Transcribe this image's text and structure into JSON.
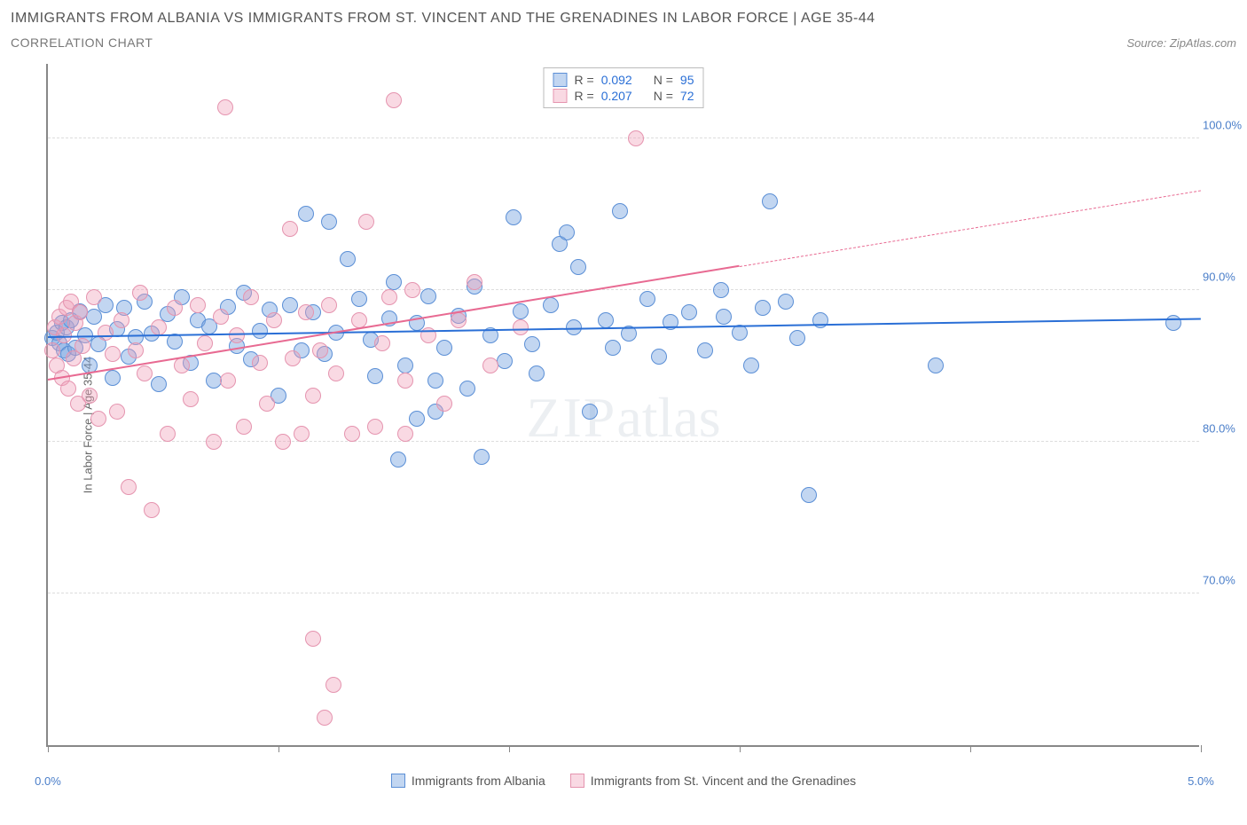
{
  "title": "IMMIGRANTS FROM ALBANIA VS IMMIGRANTS FROM ST. VINCENT AND THE GRENADINES IN LABOR FORCE | AGE 35-44",
  "subtitle": "CORRELATION CHART",
  "source_label": "Source: ZipAtlas.com",
  "watermark_zip": "ZIP",
  "watermark_atlas": "atlas",
  "chart": {
    "type": "scatter",
    "y_axis_title": "In Labor Force | Age 35-44",
    "xlim": [
      0,
      5
    ],
    "ylim": [
      60,
      105
    ],
    "x_ticks": [
      0,
      1,
      2,
      3,
      4,
      5
    ],
    "x_tick_labels": {
      "0": "0.0%",
      "5": "5.0%"
    },
    "y_grid": [
      70,
      80,
      90,
      100
    ],
    "y_tick_labels": {
      "70": "70.0%",
      "80": "80.0%",
      "90": "90.0%",
      "100": "100.0%"
    },
    "marker_radius": 9,
    "marker_opacity": 0.55,
    "trend_line_width": 2.5,
    "trend_dash_width": 1,
    "series": [
      {
        "key": "albania",
        "label": "Immigrants from Albania",
        "color_fill": "rgba(120,165,225,0.45)",
        "color_stroke": "#5b8fd6",
        "trend_color": "#2a6fd6",
        "R": "0.092",
        "N": "95",
        "trend": {
          "x1": 0,
          "y1": 86.8,
          "x2": 5,
          "y2": 88.0,
          "xmax_solid": 5
        },
        "points": [
          [
            0.02,
            86.8
          ],
          [
            0.04,
            87.2
          ],
          [
            0.05,
            86.5
          ],
          [
            0.06,
            87.8
          ],
          [
            0.07,
            86.0
          ],
          [
            0.08,
            87.5
          ],
          [
            0.09,
            85.8
          ],
          [
            0.1,
            88.0
          ],
          [
            0.12,
            86.2
          ],
          [
            0.14,
            88.6
          ],
          [
            0.16,
            87.0
          ],
          [
            0.18,
            85.0
          ],
          [
            0.2,
            88.2
          ],
          [
            0.22,
            86.4
          ],
          [
            0.25,
            89.0
          ],
          [
            0.28,
            84.2
          ],
          [
            0.3,
            87.4
          ],
          [
            0.33,
            88.8
          ],
          [
            0.35,
            85.6
          ],
          [
            0.38,
            86.9
          ],
          [
            0.42,
            89.2
          ],
          [
            0.45,
            87.1
          ],
          [
            0.48,
            83.8
          ],
          [
            0.52,
            88.4
          ],
          [
            0.55,
            86.6
          ],
          [
            0.58,
            89.5
          ],
          [
            0.62,
            85.2
          ],
          [
            0.65,
            88.0
          ],
          [
            0.7,
            87.6
          ],
          [
            0.72,
            84.0
          ],
          [
            0.78,
            88.9
          ],
          [
            0.82,
            86.3
          ],
          [
            0.85,
            89.8
          ],
          [
            0.88,
            85.4
          ],
          [
            0.92,
            87.3
          ],
          [
            0.96,
            88.7
          ],
          [
            1.0,
            83.0
          ],
          [
            1.05,
            89.0
          ],
          [
            1.1,
            86.0
          ],
          [
            1.12,
            95.0
          ],
          [
            1.15,
            88.5
          ],
          [
            1.2,
            85.8
          ],
          [
            1.22,
            94.5
          ],
          [
            1.25,
            87.2
          ],
          [
            1.3,
            92.0
          ],
          [
            1.35,
            89.4
          ],
          [
            1.4,
            86.7
          ],
          [
            1.42,
            84.3
          ],
          [
            1.48,
            88.1
          ],
          [
            1.5,
            90.5
          ],
          [
            1.52,
            78.8
          ],
          [
            1.55,
            85.0
          ],
          [
            1.6,
            81.5
          ],
          [
            1.6,
            87.8
          ],
          [
            1.65,
            89.6
          ],
          [
            1.68,
            82.0
          ],
          [
            1.68,
            84.0
          ],
          [
            1.72,
            86.2
          ],
          [
            1.78,
            88.3
          ],
          [
            1.82,
            83.5
          ],
          [
            1.85,
            90.2
          ],
          [
            1.88,
            79.0
          ],
          [
            1.92,
            87.0
          ],
          [
            1.98,
            85.3
          ],
          [
            2.02,
            94.8
          ],
          [
            2.05,
            88.6
          ],
          [
            2.1,
            86.4
          ],
          [
            2.12,
            84.5
          ],
          [
            2.18,
            89.0
          ],
          [
            2.22,
            93.0
          ],
          [
            2.25,
            93.8
          ],
          [
            2.28,
            87.5
          ],
          [
            2.3,
            91.5
          ],
          [
            2.35,
            82.0
          ],
          [
            2.42,
            88.0
          ],
          [
            2.45,
            86.2
          ],
          [
            2.48,
            95.2
          ],
          [
            2.52,
            87.1
          ],
          [
            2.6,
            89.4
          ],
          [
            2.65,
            85.6
          ],
          [
            2.7,
            87.9
          ],
          [
            2.78,
            88.5
          ],
          [
            2.85,
            86.0
          ],
          [
            2.92,
            90.0
          ],
          [
            2.93,
            88.2
          ],
          [
            3.0,
            87.2
          ],
          [
            3.05,
            85.0
          ],
          [
            3.1,
            88.8
          ],
          [
            3.13,
            95.8
          ],
          [
            3.2,
            89.2
          ],
          [
            3.25,
            86.8
          ],
          [
            3.3,
            76.5
          ],
          [
            3.35,
            88.0
          ],
          [
            3.85,
            85.0
          ],
          [
            4.88,
            87.8
          ]
        ]
      },
      {
        "key": "svg",
        "label": "Immigrants from St. Vincent and the Grenadines",
        "color_fill": "rgba(240,160,185,0.4)",
        "color_stroke": "#e594af",
        "trend_color": "#e86a92",
        "R": "0.207",
        "N": "72",
        "trend": {
          "x1": 0,
          "y1": 84.0,
          "x2": 5,
          "y2": 96.5,
          "xmax_solid": 3.0
        },
        "points": [
          [
            0.02,
            86.0
          ],
          [
            0.03,
            87.5
          ],
          [
            0.04,
            85.0
          ],
          [
            0.05,
            88.2
          ],
          [
            0.06,
            84.2
          ],
          [
            0.07,
            87.0
          ],
          [
            0.08,
            88.8
          ],
          [
            0.09,
            83.5
          ],
          [
            0.1,
            89.2
          ],
          [
            0.11,
            85.5
          ],
          [
            0.12,
            87.8
          ],
          [
            0.13,
            82.5
          ],
          [
            0.14,
            88.5
          ],
          [
            0.15,
            86.3
          ],
          [
            0.18,
            83.0
          ],
          [
            0.2,
            89.5
          ],
          [
            0.22,
            81.5
          ],
          [
            0.25,
            87.2
          ],
          [
            0.28,
            85.8
          ],
          [
            0.3,
            82.0
          ],
          [
            0.32,
            88.0
          ],
          [
            0.35,
            77.0
          ],
          [
            0.38,
            86.0
          ],
          [
            0.4,
            89.8
          ],
          [
            0.42,
            84.5
          ],
          [
            0.45,
            75.5
          ],
          [
            0.48,
            87.5
          ],
          [
            0.52,
            80.5
          ],
          [
            0.55,
            88.8
          ],
          [
            0.58,
            85.0
          ],
          [
            0.62,
            82.8
          ],
          [
            0.65,
            89.0
          ],
          [
            0.68,
            86.5
          ],
          [
            0.72,
            80.0
          ],
          [
            0.75,
            88.2
          ],
          [
            0.77,
            102.0
          ],
          [
            0.78,
            84.0
          ],
          [
            0.82,
            87.0
          ],
          [
            0.85,
            81.0
          ],
          [
            0.88,
            89.5
          ],
          [
            0.92,
            85.2
          ],
          [
            0.95,
            82.5
          ],
          [
            0.98,
            88.0
          ],
          [
            1.02,
            80.0
          ],
          [
            1.05,
            94.0
          ],
          [
            1.06,
            85.5
          ],
          [
            1.1,
            80.5
          ],
          [
            1.12,
            88.5
          ],
          [
            1.15,
            67.0
          ],
          [
            1.15,
            83.0
          ],
          [
            1.18,
            86.0
          ],
          [
            1.2,
            61.8
          ],
          [
            1.22,
            89.0
          ],
          [
            1.24,
            64.0
          ],
          [
            1.25,
            84.5
          ],
          [
            1.32,
            80.5
          ],
          [
            1.35,
            88.0
          ],
          [
            1.38,
            94.5
          ],
          [
            1.42,
            81.0
          ],
          [
            1.45,
            86.5
          ],
          [
            1.48,
            89.5
          ],
          [
            1.5,
            102.5
          ],
          [
            1.55,
            80.5
          ],
          [
            1.55,
            84.0
          ],
          [
            1.58,
            90.0
          ],
          [
            1.65,
            87.0
          ],
          [
            1.72,
            82.5
          ],
          [
            1.78,
            88.0
          ],
          [
            1.85,
            90.5
          ],
          [
            1.92,
            85.0
          ],
          [
            2.05,
            87.5
          ],
          [
            2.55,
            100.0
          ]
        ]
      }
    ]
  },
  "legend_top": {
    "r_label": "R =",
    "n_label": "N ="
  }
}
